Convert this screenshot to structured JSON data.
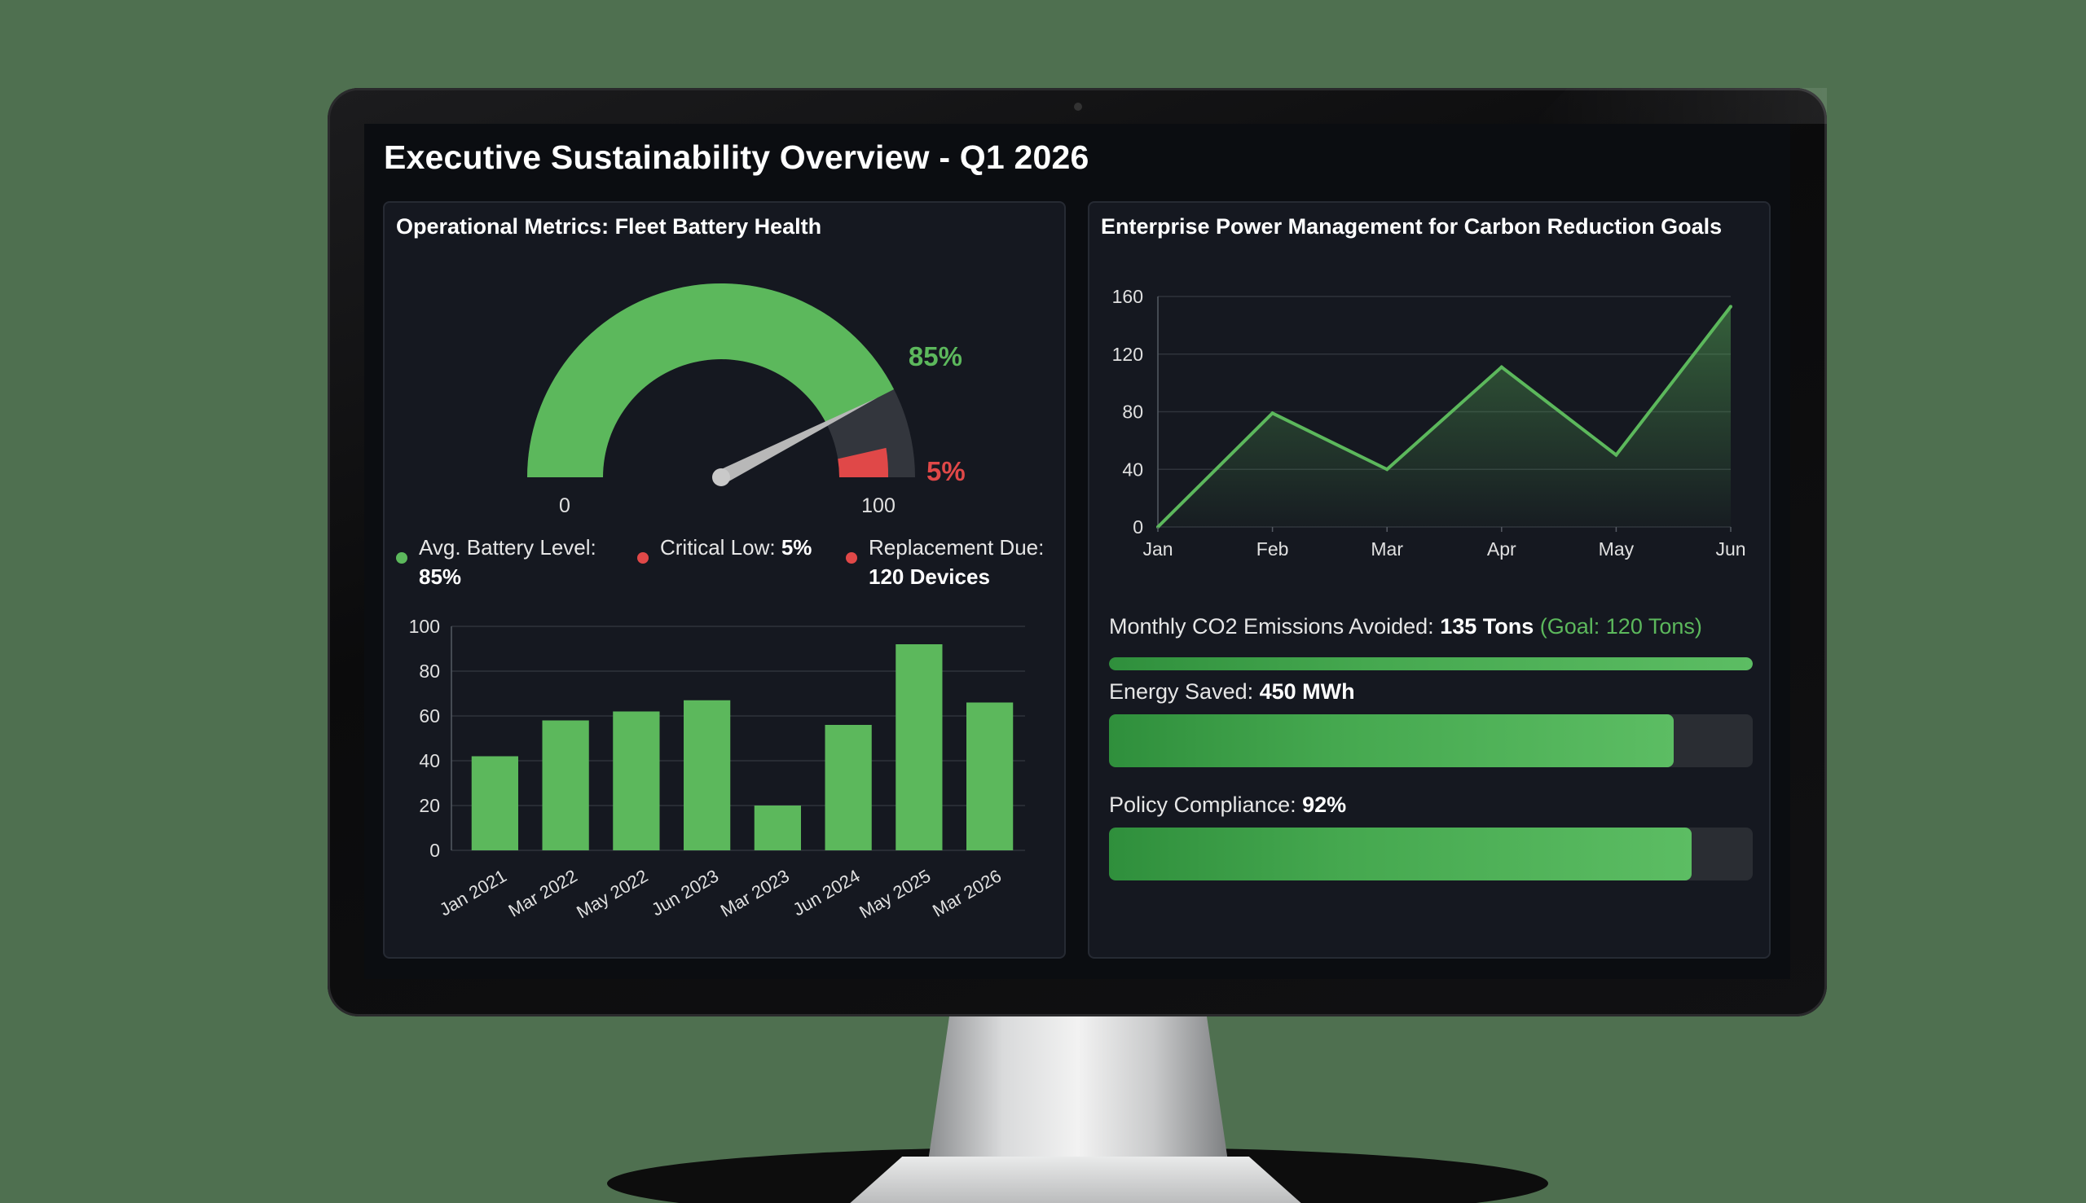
{
  "dashboard": {
    "title": "Executive Sustainability Overview - Q1 2026"
  },
  "battery_panel": {
    "title": "Operational Metrics: Fleet Battery Health",
    "gauge": {
      "value": 85,
      "value_label": "85%",
      "critical": 5,
      "critical_label": "5%",
      "min_label": "0",
      "max_label": "100"
    },
    "legend": [
      {
        "label": "Avg. Battery Level:",
        "value": "85%",
        "color": "#5cb85c"
      },
      {
        "label": "Critical Low:",
        "value": "5%",
        "color": "#e04848"
      },
      {
        "label": "Replacement Due:",
        "value": "120 Devices",
        "color": "#e04848"
      }
    ]
  },
  "power_panel": {
    "title": "Enterprise Power Management for Carbon Reduction Goals",
    "metrics": {
      "co2": {
        "label": "Monthly CO2 Emissions Avoided:",
        "value": "135 Tons",
        "goal": "(Goal: 120 Tons)",
        "progress": 1.0
      },
      "energy": {
        "label": "Energy Saved:",
        "value": "450 MWh",
        "progress": 0.877
      },
      "compliance": {
        "label": "Policy Compliance:",
        "value": "92%",
        "progress": 0.905
      }
    }
  },
  "colors": {
    "accent_green": "#5cb85c",
    "critical_red": "#e04848",
    "panel_bg": "#151820",
    "screen_bg": "#0b0d11"
  },
  "chart_data": [
    {
      "type": "bar",
      "categories": [
        "Jan 2021",
        "Mar 2022",
        "May 2022",
        "Jun 2023",
        "Mar 2023",
        "Jun 2024",
        "May 2025",
        "Mar 2026"
      ],
      "values": [
        42,
        58,
        62,
        67,
        20,
        56,
        92,
        66
      ],
      "title": "",
      "xlabel": "",
      "ylabel": "",
      "ylim": [
        0,
        100
      ],
      "yticks": [
        0,
        20,
        40,
        60,
        80,
        100
      ],
      "grid": true
    },
    {
      "type": "area",
      "categories": [
        "Jan",
        "Feb",
        "Mar",
        "Apr",
        "May",
        "Jun"
      ],
      "values": [
        0,
        79,
        40,
        111,
        50,
        153
      ],
      "title": "",
      "xlabel": "",
      "ylabel": "",
      "ylim": [
        0,
        160
      ],
      "yticks": [
        0,
        40,
        80,
        120,
        160
      ],
      "grid": true
    }
  ]
}
